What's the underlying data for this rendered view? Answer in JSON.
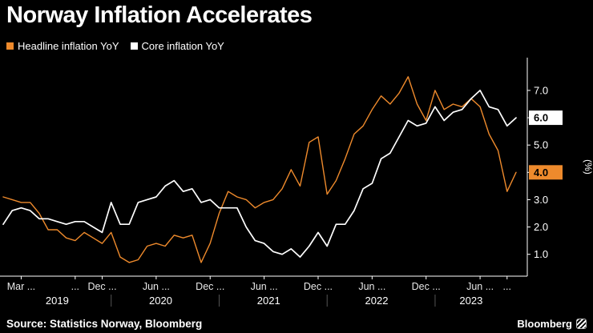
{
  "footer": {
    "source": "Source: Statistics Norway, Bloomberg",
    "brand": "Bloomberg"
  },
  "colors": {
    "background": "#000000",
    "axis": "#ffffff",
    "headline": "#ee8a2c",
    "core": "#ffffff",
    "tick_text": "#e8e8e8",
    "year_divider": "#555555"
  },
  "chart_data": {
    "type": "line",
    "title": "Norway Inflation Accelerates",
    "x_unit": "month",
    "x_start": "2019-01",
    "x_end": "2023-10",
    "ylabel": "(%)",
    "ylim": [
      0.2,
      8.2
    ],
    "grid": false,
    "legend_position": "top-left",
    "y_axis_side": "right",
    "series": [
      {
        "name": "Headline inflation YoY",
        "color": "#ee8a2c",
        "values": [
          3.1,
          3.0,
          2.9,
          2.9,
          2.5,
          1.9,
          1.9,
          1.6,
          1.5,
          1.8,
          1.6,
          1.4,
          1.8,
          0.9,
          0.7,
          0.8,
          1.3,
          1.4,
          1.3,
          1.7,
          1.6,
          1.7,
          0.7,
          1.4,
          2.5,
          3.3,
          3.1,
          3.0,
          2.7,
          2.9,
          3.0,
          3.4,
          4.1,
          3.5,
          5.1,
          5.3,
          3.2,
          3.7,
          4.5,
          5.4,
          5.7,
          6.3,
          6.8,
          6.5,
          6.9,
          7.5,
          6.5,
          5.9,
          7.0,
          6.3,
          6.5,
          6.4,
          6.7,
          6.4,
          5.4,
          4.8,
          3.3,
          4.0
        ]
      },
      {
        "name": "Core inflation YoY",
        "color": "#ffffff",
        "values": [
          2.1,
          2.6,
          2.7,
          2.6,
          2.3,
          2.3,
          2.2,
          2.1,
          2.2,
          2.2,
          2.0,
          1.8,
          2.9,
          2.1,
          2.1,
          2.9,
          3.0,
          3.1,
          3.5,
          3.7,
          3.3,
          3.4,
          2.9,
          3.0,
          2.7,
          2.7,
          2.7,
          2.0,
          1.5,
          1.4,
          1.1,
          1.0,
          1.2,
          0.9,
          1.3,
          1.8,
          1.3,
          2.1,
          2.1,
          2.6,
          3.4,
          3.6,
          4.5,
          4.7,
          5.3,
          5.9,
          5.7,
          5.8,
          6.4,
          5.9,
          6.2,
          6.3,
          6.7,
          7.0,
          6.4,
          6.3,
          5.7,
          6.0
        ]
      }
    ],
    "y_ticks": [
      {
        "value": 7.0,
        "label": "7.0"
      },
      {
        "value": 6.0,
        "label": "6.0"
      },
      {
        "value": 5.0,
        "label": "5.0"
      },
      {
        "value": 4.0,
        "label": "4.0"
      },
      {
        "value": 3.0,
        "label": "3.0"
      },
      {
        "value": 2.0,
        "label": "2.0"
      },
      {
        "value": 1.0,
        "label": "1.0"
      }
    ],
    "badges": [
      {
        "value": 6.0,
        "label": "6.0",
        "bg": "#ffffff",
        "fg": "#000000"
      },
      {
        "value": 4.0,
        "label": "4.0",
        "bg": "#ee8a2c",
        "fg": "#000000"
      }
    ],
    "x_ticks": [
      {
        "index": 2,
        "label": "Mar ..."
      },
      {
        "index": 8,
        "label": "..."
      },
      {
        "index": 11,
        "label": "Dec ..."
      },
      {
        "index": 17,
        "label": "Jun ..."
      },
      {
        "index": 23,
        "label": "Dec ..."
      },
      {
        "index": 29,
        "label": "Jun ..."
      },
      {
        "index": 35,
        "label": "Dec ..."
      },
      {
        "index": 41,
        "label": "Jun ..."
      },
      {
        "index": 47,
        "label": "Dec ..."
      },
      {
        "index": 53,
        "label": "Jun ..."
      },
      {
        "index": 56,
        "label": "..."
      }
    ],
    "year_labels": [
      {
        "index": 6,
        "label": "2019"
      },
      {
        "index": 17.5,
        "label": "2020"
      },
      {
        "index": 29.5,
        "label": "2021"
      },
      {
        "index": 41.5,
        "label": "2022"
      },
      {
        "index": 52,
        "label": "2023"
      }
    ],
    "year_boundaries": [
      12,
      24,
      36,
      48
    ]
  }
}
